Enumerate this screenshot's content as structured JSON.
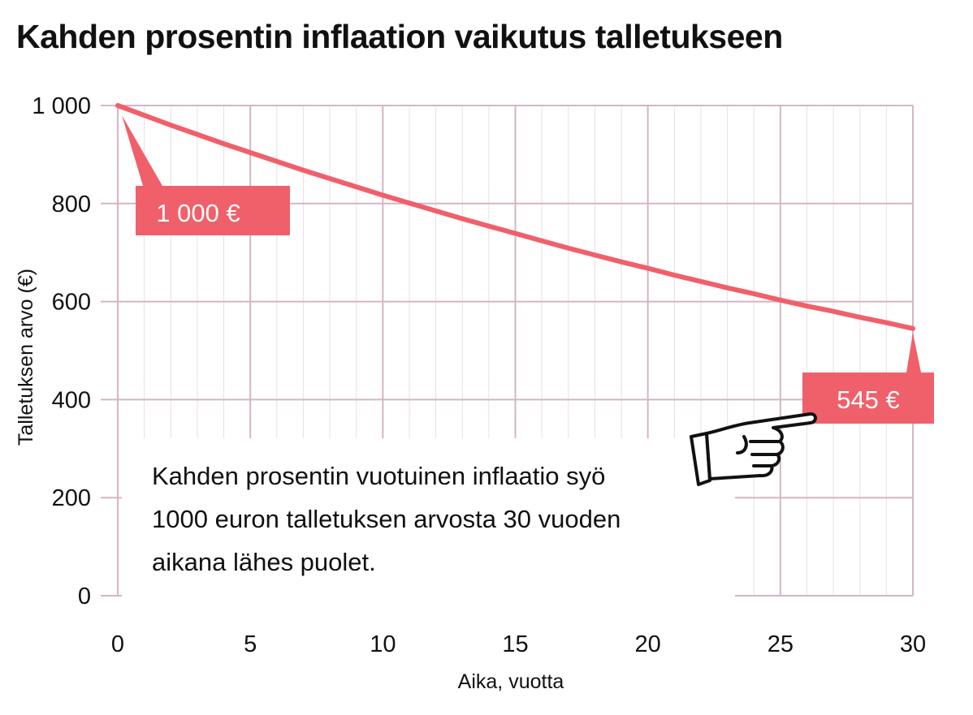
{
  "title": "Kahden prosentin inflaation vaikutus talletukseen",
  "note": {
    "lines": [
      "Kahden prosentin vuotuinen inflaatio syö",
      "1000 euron talletuksen arvosta 30 vuoden",
      "aikana lähes puolet."
    ]
  },
  "callouts": {
    "start": "1 000 €",
    "end": "545 €"
  },
  "icons": {
    "pointer": "pointing-hand-icon"
  },
  "colors": {
    "line": "#f0606a",
    "callout_bg": "#f0606a",
    "grid_major": "#d4b5c5",
    "grid_minor": "#ebdde6"
  },
  "chart_data": {
    "type": "line",
    "title": "Kahden prosentin inflaation vaikutus talletukseen",
    "xlabel": "Aika, vuotta",
    "ylabel": "Talletuksen arvo (€)",
    "xlim": [
      0,
      30
    ],
    "ylim": [
      0,
      1000
    ],
    "x_ticks": [
      0,
      5,
      10,
      15,
      20,
      25,
      30
    ],
    "y_ticks": [
      0,
      200,
      400,
      600,
      800,
      1000
    ],
    "y_tick_labels": [
      "0",
      "200",
      "400",
      "600",
      "800",
      "1 000"
    ],
    "grid": true,
    "x": [
      0,
      1,
      2,
      3,
      4,
      5,
      6,
      7,
      8,
      9,
      10,
      11,
      12,
      13,
      14,
      15,
      16,
      17,
      18,
      19,
      20,
      21,
      22,
      23,
      24,
      25,
      26,
      27,
      28,
      29,
      30
    ],
    "values": [
      1000,
      980,
      960,
      941,
      922,
      904,
      886,
      868,
      851,
      834,
      817,
      801,
      785,
      769,
      754,
      739,
      724,
      709,
      695,
      681,
      668,
      654,
      641,
      628,
      616,
      603,
      591,
      580,
      568,
      557,
      545
    ]
  }
}
